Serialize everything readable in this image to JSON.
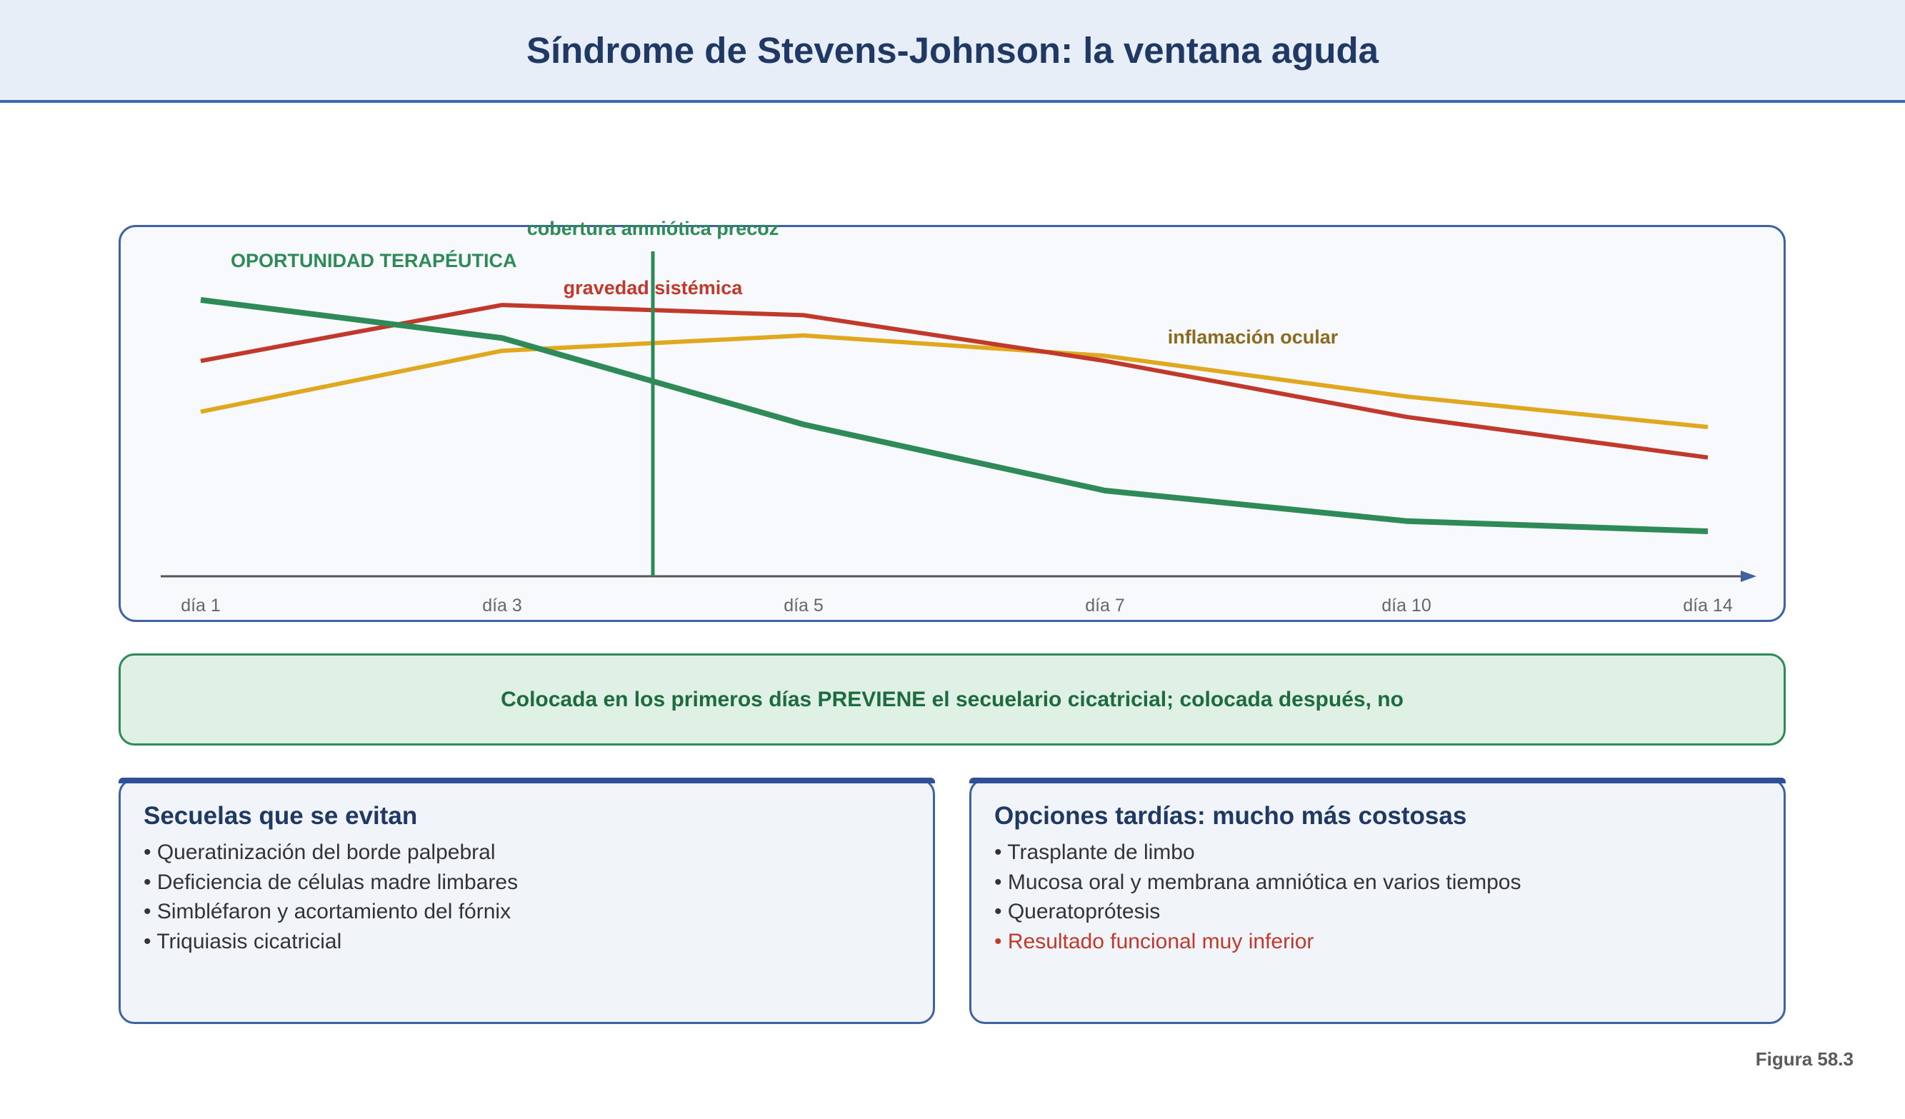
{
  "header": {
    "title": "Síndrome de Stevens-Johnson: la ventana aguda"
  },
  "chart": {
    "opportunity_label": "OPORTUNIDAD TERAPÉUTICA",
    "marker_label": "cobertura amniótica precoz",
    "series_labels": {
      "systemic": "gravedad sistémica",
      "ocular": "inflamación ocular"
    },
    "colors": {
      "opportunity": "#2e8b57",
      "systemic": "#c0392b",
      "ocular": "#e0a81e",
      "axis": "#555555",
      "marker": "#2e8b57"
    }
  },
  "chart_data": {
    "type": "line",
    "x": [
      "día 1",
      "día 3",
      "día 5",
      "día 7",
      "día 10",
      "día 14"
    ],
    "marker_between": [
      "día 3",
      "día 5"
    ],
    "series": [
      {
        "name": "OPORTUNIDAD TERAPÉUTICA",
        "values": [
          100,
          85,
          51,
          25,
          13,
          9
        ]
      },
      {
        "name": "gravedad sistémica",
        "values": [
          76,
          98,
          94,
          76,
          54,
          38
        ]
      },
      {
        "name": "inflamación ocular",
        "values": [
          56,
          80,
          86,
          78,
          62,
          50
        ]
      }
    ],
    "ylim": [
      0,
      100
    ],
    "grid": false
  },
  "callout": {
    "text": "Colocada en los primeros días PREVIENE el secuelario cicatricial; colocada después, no"
  },
  "cards": {
    "left": {
      "title": "Secuelas que se evitan",
      "items": [
        "• Queratinización del borde palpebral",
        "• Deficiencia de células madre limbares",
        "• Simbléfaron y acortamiento del fórnix",
        "• Triquiasis cicatricial"
      ]
    },
    "right": {
      "title": "Opciones tardías: mucho más costosas",
      "items": [
        "• Trasplante de limbo",
        "• Mucosa oral y membrana amniótica en varios tiempos",
        "• Queratoprótesis",
        "• Resultado funcional muy inferior"
      ]
    }
  },
  "footer": {
    "figure_label": "Figura 58.3"
  }
}
